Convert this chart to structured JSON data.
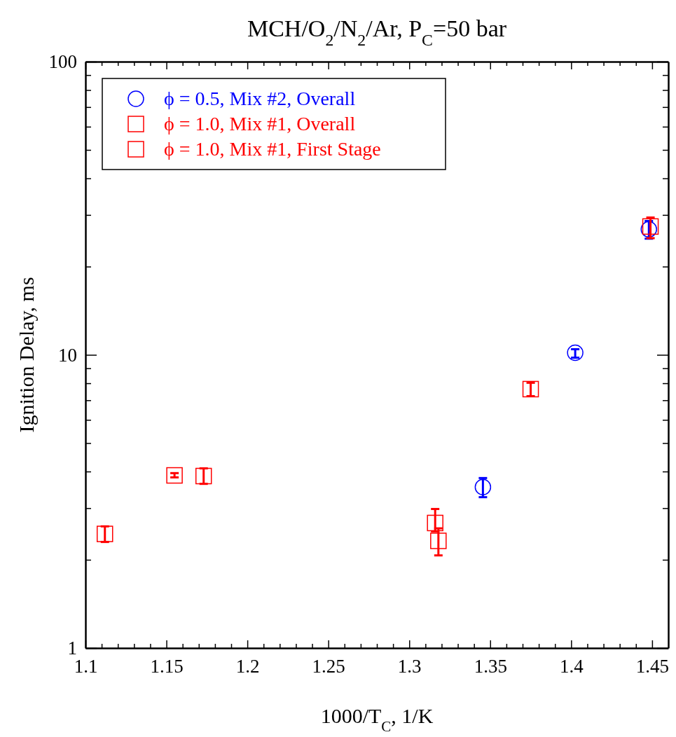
{
  "chart_data": {
    "type": "scatter",
    "title": "MCH/O$_{2}$/N$_{2}$/Ar, P$_{C}$=50 bar",
    "xlabel": "1000/T$_{C}$, 1/K",
    "ylabel": "Ignition Delay, ms",
    "log": "y",
    "xlim": [
      1.1,
      1.46
    ],
    "ylim": [
      1,
      100
    ],
    "xticks": [
      1.1,
      {
        "value": 1.11,
        "label": null
      },
      {
        "value": 1.12,
        "label": null
      },
      {
        "value": 1.13,
        "label": null
      },
      {
        "value": 1.14,
        "label": null
      },
      1.15,
      {
        "value": 1.16,
        "label": null
      },
      {
        "value": 1.17,
        "label": null
      },
      {
        "value": 1.18,
        "label": null
      },
      {
        "value": 1.19,
        "label": null
      },
      1.2,
      {
        "value": 1.21,
        "label": null
      },
      {
        "value": 1.22,
        "label": null
      },
      {
        "value": 1.23,
        "label": null
      },
      {
        "value": 1.24,
        "label": null
      },
      1.25,
      {
        "value": 1.26,
        "label": null
      },
      {
        "value": 1.27,
        "label": null
      },
      {
        "value": 1.28,
        "label": null
      },
      {
        "value": 1.29,
        "label": null
      },
      1.3,
      {
        "value": 1.31,
        "label": null
      },
      {
        "value": 1.32,
        "label": null
      },
      {
        "value": 1.33,
        "label": null
      },
      {
        "value": 1.34,
        "label": null
      },
      1.35,
      {
        "value": 1.36,
        "label": null
      },
      {
        "value": 1.37,
        "label": null
      },
      {
        "value": 1.38,
        "label": null
      },
      {
        "value": 1.39,
        "label": null
      },
      1.4,
      {
        "value": 1.41,
        "label": null
      },
      {
        "value": 1.42,
        "label": null
      },
      {
        "value": 1.43,
        "label": null
      },
      {
        "value": 1.44,
        "label": null
      },
      1.45
    ],
    "yticks": [
      1,
      {
        "value": 2,
        "label": null
      },
      {
        "value": 3,
        "label": null
      },
      {
        "value": 4,
        "label": null
      },
      {
        "value": 5,
        "label": null
      },
      {
        "value": 6,
        "label": null
      },
      {
        "value": 7,
        "label": null
      },
      {
        "value": 8,
        "label": null
      },
      {
        "value": 9,
        "label": null
      },
      10,
      {
        "value": 20,
        "label": null
      },
      {
        "value": 30,
        "label": null
      },
      {
        "value": 40,
        "label": null
      },
      {
        "value": 50,
        "label": null
      },
      {
        "value": 60,
        "label": null
      },
      {
        "value": 70,
        "label": null
      },
      {
        "value": 80,
        "label": null
      },
      {
        "value": 90,
        "label": null
      },
      100
    ],
    "grid": false,
    "legend": "top left",
    "series": [
      {
        "name": "ϕ = 0.5, Mix #2, Overall",
        "color": "#0000ff",
        "marker": "circle",
        "x": [
          1.3455,
          1.4025,
          1.448
        ],
        "values": [
          3.54,
          10.17,
          26.8
        ],
        "errors": [
          [
            3.27,
            3.8
          ],
          [
            9.78,
            10.45
          ],
          [
            24.9,
            28.6
          ]
        ]
      },
      {
        "name": "ϕ = 1.0, Mix #1, Overall",
        "color": "#ff0000",
        "marker": "square",
        "x": [
          1.112,
          1.155,
          1.173,
          1.316,
          1.375,
          1.449
        ],
        "values": [
          2.45,
          3.88,
          3.86,
          2.67,
          7.64,
          27.4
        ],
        "errors": [
          [
            2.3,
            2.6
          ],
          [
            3.82,
            3.95
          ],
          [
            3.63,
            4.1
          ],
          [
            2.5,
            2.98
          ],
          [
            7.23,
            8.03
          ],
          [
            25,
            29.4
          ]
        ]
      },
      {
        "name": "ϕ = 1.0, Mix #1, First Stage",
        "color": "#ff0000",
        "marker": "square",
        "x": [
          1.318
        ],
        "values": [
          2.32
        ],
        "errors": [
          [
            2.07,
            2.56
          ]
        ]
      }
    ]
  }
}
